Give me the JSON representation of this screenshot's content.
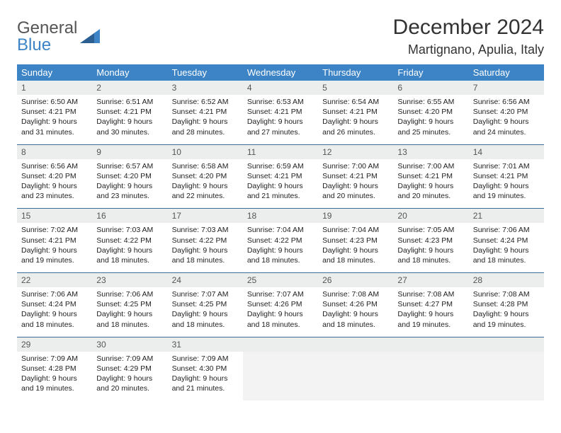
{
  "brand": {
    "name_part1": "General",
    "name_part2": "Blue"
  },
  "header": {
    "title": "December 2024",
    "location": "Martignano, Apulia, Italy"
  },
  "colors": {
    "accent": "#3d84c6",
    "accent_dark": "#3d6d97",
    "daynum_bg": "#eceded",
    "empty_bg": "#f3f3f3",
    "text": "#222"
  },
  "weekdays": [
    "Sunday",
    "Monday",
    "Tuesday",
    "Wednesday",
    "Thursday",
    "Friday",
    "Saturday"
  ],
  "weeks": [
    [
      {
        "n": "1",
        "sr": "6:50 AM",
        "ss": "4:21 PM",
        "dl": "9 hours and 31 minutes."
      },
      {
        "n": "2",
        "sr": "6:51 AM",
        "ss": "4:21 PM",
        "dl": "9 hours and 30 minutes."
      },
      {
        "n": "3",
        "sr": "6:52 AM",
        "ss": "4:21 PM",
        "dl": "9 hours and 28 minutes."
      },
      {
        "n": "4",
        "sr": "6:53 AM",
        "ss": "4:21 PM",
        "dl": "9 hours and 27 minutes."
      },
      {
        "n": "5",
        "sr": "6:54 AM",
        "ss": "4:21 PM",
        "dl": "9 hours and 26 minutes."
      },
      {
        "n": "6",
        "sr": "6:55 AM",
        "ss": "4:20 PM",
        "dl": "9 hours and 25 minutes."
      },
      {
        "n": "7",
        "sr": "6:56 AM",
        "ss": "4:20 PM",
        "dl": "9 hours and 24 minutes."
      }
    ],
    [
      {
        "n": "8",
        "sr": "6:56 AM",
        "ss": "4:20 PM",
        "dl": "9 hours and 23 minutes."
      },
      {
        "n": "9",
        "sr": "6:57 AM",
        "ss": "4:20 PM",
        "dl": "9 hours and 23 minutes."
      },
      {
        "n": "10",
        "sr": "6:58 AM",
        "ss": "4:20 PM",
        "dl": "9 hours and 22 minutes."
      },
      {
        "n": "11",
        "sr": "6:59 AM",
        "ss": "4:21 PM",
        "dl": "9 hours and 21 minutes."
      },
      {
        "n": "12",
        "sr": "7:00 AM",
        "ss": "4:21 PM",
        "dl": "9 hours and 20 minutes."
      },
      {
        "n": "13",
        "sr": "7:00 AM",
        "ss": "4:21 PM",
        "dl": "9 hours and 20 minutes."
      },
      {
        "n": "14",
        "sr": "7:01 AM",
        "ss": "4:21 PM",
        "dl": "9 hours and 19 minutes."
      }
    ],
    [
      {
        "n": "15",
        "sr": "7:02 AM",
        "ss": "4:21 PM",
        "dl": "9 hours and 19 minutes."
      },
      {
        "n": "16",
        "sr": "7:03 AM",
        "ss": "4:22 PM",
        "dl": "9 hours and 18 minutes."
      },
      {
        "n": "17",
        "sr": "7:03 AM",
        "ss": "4:22 PM",
        "dl": "9 hours and 18 minutes."
      },
      {
        "n": "18",
        "sr": "7:04 AM",
        "ss": "4:22 PM",
        "dl": "9 hours and 18 minutes."
      },
      {
        "n": "19",
        "sr": "7:04 AM",
        "ss": "4:23 PM",
        "dl": "9 hours and 18 minutes."
      },
      {
        "n": "20",
        "sr": "7:05 AM",
        "ss": "4:23 PM",
        "dl": "9 hours and 18 minutes."
      },
      {
        "n": "21",
        "sr": "7:06 AM",
        "ss": "4:24 PM",
        "dl": "9 hours and 18 minutes."
      }
    ],
    [
      {
        "n": "22",
        "sr": "7:06 AM",
        "ss": "4:24 PM",
        "dl": "9 hours and 18 minutes."
      },
      {
        "n": "23",
        "sr": "7:06 AM",
        "ss": "4:25 PM",
        "dl": "9 hours and 18 minutes."
      },
      {
        "n": "24",
        "sr": "7:07 AM",
        "ss": "4:25 PM",
        "dl": "9 hours and 18 minutes."
      },
      {
        "n": "25",
        "sr": "7:07 AM",
        "ss": "4:26 PM",
        "dl": "9 hours and 18 minutes."
      },
      {
        "n": "26",
        "sr": "7:08 AM",
        "ss": "4:26 PM",
        "dl": "9 hours and 18 minutes."
      },
      {
        "n": "27",
        "sr": "7:08 AM",
        "ss": "4:27 PM",
        "dl": "9 hours and 19 minutes."
      },
      {
        "n": "28",
        "sr": "7:08 AM",
        "ss": "4:28 PM",
        "dl": "9 hours and 19 minutes."
      }
    ],
    [
      {
        "n": "29",
        "sr": "7:09 AM",
        "ss": "4:28 PM",
        "dl": "9 hours and 19 minutes."
      },
      {
        "n": "30",
        "sr": "7:09 AM",
        "ss": "4:29 PM",
        "dl": "9 hours and 20 minutes."
      },
      {
        "n": "31",
        "sr": "7:09 AM",
        "ss": "4:30 PM",
        "dl": "9 hours and 21 minutes."
      },
      null,
      null,
      null,
      null
    ]
  ],
  "labels": {
    "sunrise": "Sunrise:",
    "sunset": "Sunset:",
    "daylight": "Daylight:"
  }
}
